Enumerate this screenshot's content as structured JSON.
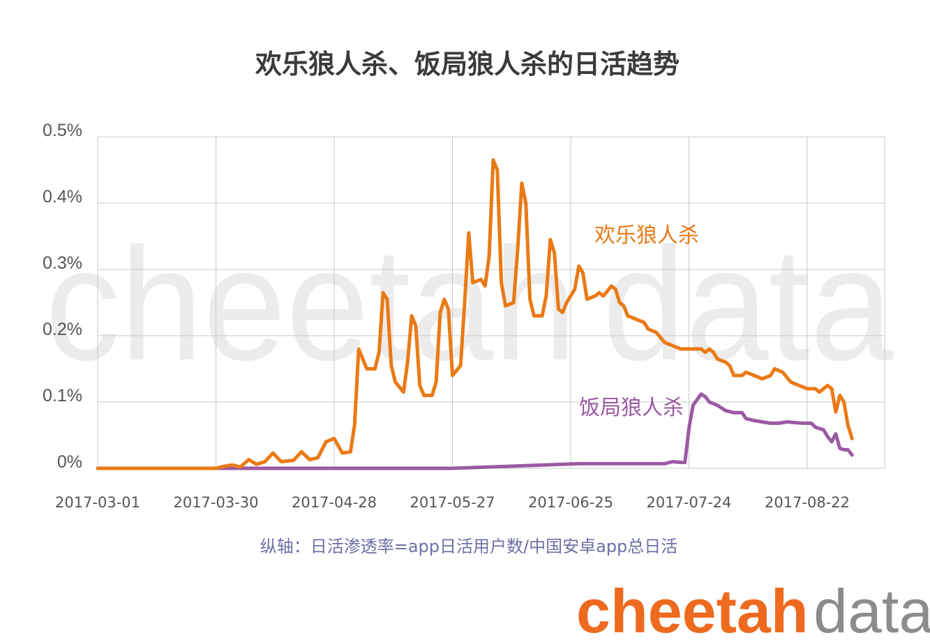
{
  "chart_data": {
    "type": "line",
    "title": "欢乐狼人杀、饭局狼人杀的日活趋势",
    "ylabel": "",
    "xlabel": "",
    "x_range": [
      "2017-03-01",
      "2017-09-02"
    ],
    "ylim": [
      0,
      0.5
    ],
    "y_ticks": [
      {
        "value": 0,
        "label": "0%"
      },
      {
        "value": 0.1,
        "label": "0.1%"
      },
      {
        "value": 0.2,
        "label": "0.2%"
      },
      {
        "value": 0.3,
        "label": "0.3%"
      },
      {
        "value": 0.4,
        "label": "0.4%"
      },
      {
        "value": 0.5,
        "label": "0.5%"
      }
    ],
    "x_ticks": [
      "2017-03-01",
      "2017-03-30",
      "2017-04-28",
      "2017-05-27",
      "2017-06-25",
      "2017-07-24",
      "2017-08-22"
    ],
    "grid": true,
    "note": "纵轴：日活渗透率=app日活用户数/中国安卓app总日活",
    "series": [
      {
        "name": "欢乐狼人杀",
        "color": "#ea7a16",
        "points": [
          [
            "2017-03-01",
            0
          ],
          [
            "2017-03-15",
            0
          ],
          [
            "2017-03-30",
            0
          ],
          [
            "2017-04-01",
            0.003
          ],
          [
            "2017-04-03",
            0.005
          ],
          [
            "2017-04-05",
            0.002
          ],
          [
            "2017-04-07",
            0.013
          ],
          [
            "2017-04-09",
            0.006
          ],
          [
            "2017-04-11",
            0.01
          ],
          [
            "2017-04-13",
            0.023
          ],
          [
            "2017-04-15",
            0.01
          ],
          [
            "2017-04-18",
            0.012
          ],
          [
            "2017-04-20",
            0.025
          ],
          [
            "2017-04-22",
            0.013
          ],
          [
            "2017-04-24",
            0.016
          ],
          [
            "2017-04-26",
            0.04
          ],
          [
            "2017-04-28",
            0.045
          ],
          [
            "2017-04-30",
            0.023
          ],
          [
            "2017-05-02",
            0.025
          ],
          [
            "2017-05-03",
            0.065
          ],
          [
            "2017-05-04",
            0.18
          ],
          [
            "2017-05-06",
            0.15
          ],
          [
            "2017-05-08",
            0.15
          ],
          [
            "2017-05-09",
            0.175
          ],
          [
            "2017-05-10",
            0.265
          ],
          [
            "2017-05-11",
            0.255
          ],
          [
            "2017-05-12",
            0.155
          ],
          [
            "2017-05-13",
            0.13
          ],
          [
            "2017-05-15",
            0.115
          ],
          [
            "2017-05-16",
            0.16
          ],
          [
            "2017-05-17",
            0.23
          ],
          [
            "2017-05-18",
            0.215
          ],
          [
            "2017-05-19",
            0.125
          ],
          [
            "2017-05-20",
            0.11
          ],
          [
            "2017-05-22",
            0.11
          ],
          [
            "2017-05-23",
            0.13
          ],
          [
            "2017-05-24",
            0.235
          ],
          [
            "2017-05-25",
            0.255
          ],
          [
            "2017-05-26",
            0.24
          ],
          [
            "2017-05-27",
            0.14
          ],
          [
            "2017-05-29",
            0.155
          ],
          [
            "2017-05-30",
            0.25
          ],
          [
            "2017-05-31",
            0.355
          ],
          [
            "2017-06-01",
            0.28
          ],
          [
            "2017-06-03",
            0.285
          ],
          [
            "2017-06-04",
            0.275
          ],
          [
            "2017-06-05",
            0.32
          ],
          [
            "2017-06-06",
            0.465
          ],
          [
            "2017-06-07",
            0.45
          ],
          [
            "2017-06-08",
            0.28
          ],
          [
            "2017-06-09",
            0.245
          ],
          [
            "2017-06-11",
            0.25
          ],
          [
            "2017-06-12",
            0.33
          ],
          [
            "2017-06-13",
            0.43
          ],
          [
            "2017-06-14",
            0.4
          ],
          [
            "2017-06-15",
            0.255
          ],
          [
            "2017-06-16",
            0.23
          ],
          [
            "2017-06-18",
            0.23
          ],
          [
            "2017-06-19",
            0.26
          ],
          [
            "2017-06-20",
            0.345
          ],
          [
            "2017-06-21",
            0.325
          ],
          [
            "2017-06-22",
            0.24
          ],
          [
            "2017-06-23",
            0.235
          ],
          [
            "2017-06-24",
            0.25
          ],
          [
            "2017-06-26",
            0.27
          ],
          [
            "2017-06-27",
            0.305
          ],
          [
            "2017-06-28",
            0.295
          ],
          [
            "2017-06-29",
            0.255
          ],
          [
            "2017-07-01",
            0.26
          ],
          [
            "2017-07-02",
            0.265
          ],
          [
            "2017-07-03",
            0.26
          ],
          [
            "2017-07-05",
            0.275
          ],
          [
            "2017-07-06",
            0.27
          ],
          [
            "2017-07-07",
            0.25
          ],
          [
            "2017-07-08",
            0.245
          ],
          [
            "2017-07-09",
            0.23
          ],
          [
            "2017-07-11",
            0.225
          ],
          [
            "2017-07-13",
            0.22
          ],
          [
            "2017-07-14",
            0.21
          ],
          [
            "2017-07-16",
            0.205
          ],
          [
            "2017-07-18",
            0.19
          ],
          [
            "2017-07-20",
            0.185
          ],
          [
            "2017-07-22",
            0.18
          ],
          [
            "2017-07-24",
            0.18
          ],
          [
            "2017-07-27",
            0.18
          ],
          [
            "2017-07-28",
            0.175
          ],
          [
            "2017-07-29",
            0.18
          ],
          [
            "2017-07-30",
            0.175
          ],
          [
            "2017-07-31",
            0.165
          ],
          [
            "2017-08-02",
            0.16
          ],
          [
            "2017-08-03",
            0.155
          ],
          [
            "2017-08-04",
            0.14
          ],
          [
            "2017-08-06",
            0.14
          ],
          [
            "2017-08-07",
            0.145
          ],
          [
            "2017-08-09",
            0.14
          ],
          [
            "2017-08-11",
            0.135
          ],
          [
            "2017-08-13",
            0.14
          ],
          [
            "2017-08-14",
            0.15
          ],
          [
            "2017-08-16",
            0.145
          ],
          [
            "2017-08-18",
            0.13
          ],
          [
            "2017-08-20",
            0.125
          ],
          [
            "2017-08-22",
            0.12
          ],
          [
            "2017-08-24",
            0.12
          ],
          [
            "2017-08-25",
            0.115
          ],
          [
            "2017-08-26",
            0.12
          ],
          [
            "2017-08-27",
            0.125
          ],
          [
            "2017-08-28",
            0.12
          ],
          [
            "2017-08-29",
            0.085
          ],
          [
            "2017-08-30",
            0.11
          ],
          [
            "2017-08-31",
            0.1
          ],
          [
            "2017-09-01",
            0.065
          ],
          [
            "2017-09-02",
            0.045
          ]
        ]
      },
      {
        "name": "饭局狼人杀",
        "color": "#9b5aa3",
        "points": [
          [
            "2017-03-01",
            0
          ],
          [
            "2017-05-27",
            0
          ],
          [
            "2017-06-27",
            0.007
          ],
          [
            "2017-07-18",
            0.007
          ],
          [
            "2017-07-20",
            0.01
          ],
          [
            "2017-07-22",
            0.009
          ],
          [
            "2017-07-23",
            0.009
          ],
          [
            "2017-07-24",
            0.06
          ],
          [
            "2017-07-25",
            0.095
          ],
          [
            "2017-07-27",
            0.112
          ],
          [
            "2017-07-28",
            0.108
          ],
          [
            "2017-07-29",
            0.1
          ],
          [
            "2017-07-31",
            0.095
          ],
          [
            "2017-08-02",
            0.087
          ],
          [
            "2017-08-04",
            0.084
          ],
          [
            "2017-08-06",
            0.084
          ],
          [
            "2017-08-07",
            0.075
          ],
          [
            "2017-08-09",
            0.072
          ],
          [
            "2017-08-11",
            0.07
          ],
          [
            "2017-08-13",
            0.068
          ],
          [
            "2017-08-15",
            0.068
          ],
          [
            "2017-08-17",
            0.07
          ],
          [
            "2017-08-19",
            0.069
          ],
          [
            "2017-08-21",
            0.068
          ],
          [
            "2017-08-23",
            0.068
          ],
          [
            "2017-08-24",
            0.062
          ],
          [
            "2017-08-26",
            0.058
          ],
          [
            "2017-08-27",
            0.048
          ],
          [
            "2017-08-28",
            0.04
          ],
          [
            "2017-08-29",
            0.052
          ],
          [
            "2017-08-30",
            0.03
          ],
          [
            "2017-08-31",
            0.028
          ],
          [
            "2017-09-01",
            0.028
          ],
          [
            "2017-09-02",
            0.02
          ]
        ]
      }
    ]
  },
  "series_labels": {
    "orange": "欢乐狼人杀",
    "purple": "饭局狼人杀"
  },
  "watermark": {
    "part1": "cheetah",
    "part2": "data"
  },
  "logo": {
    "part1": "cheetah",
    "part2": "data"
  }
}
